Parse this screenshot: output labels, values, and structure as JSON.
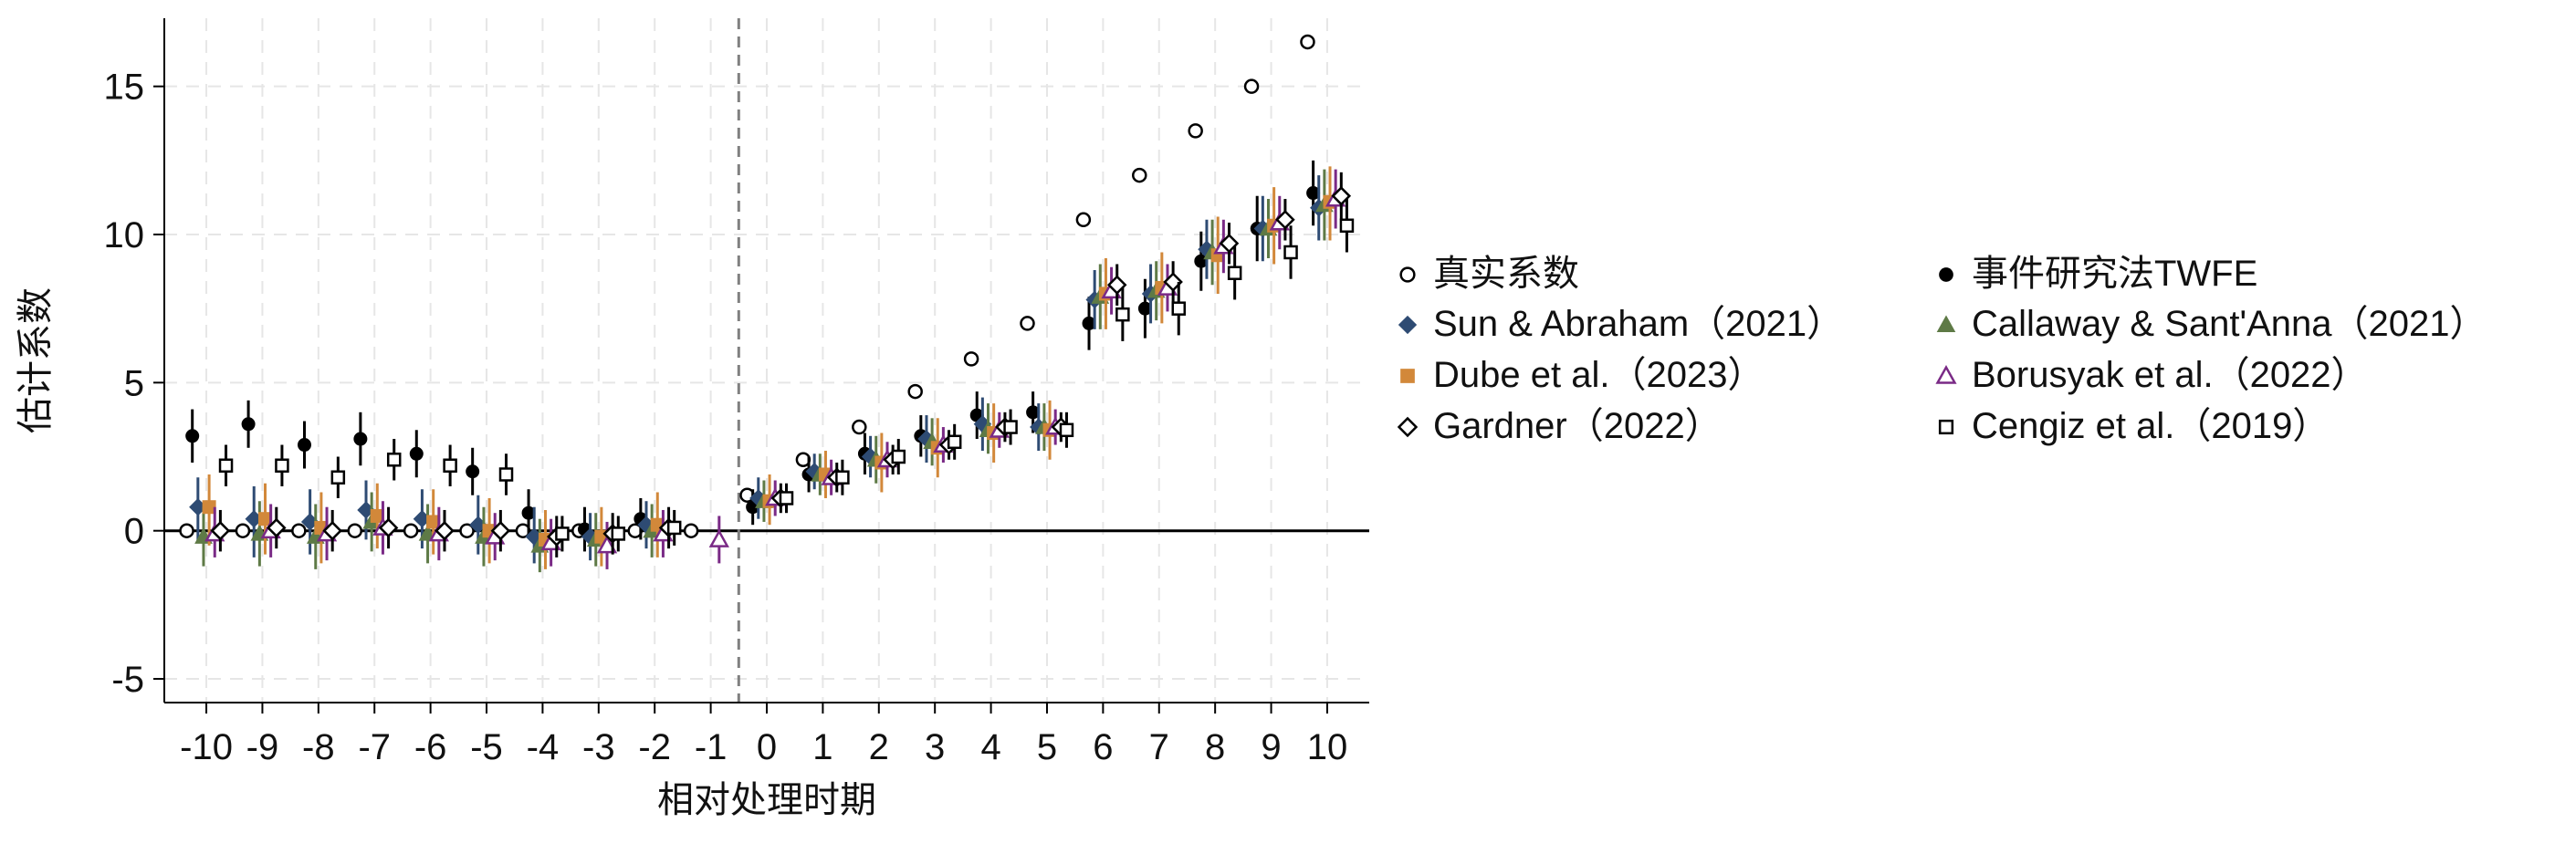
{
  "chart_data": {
    "type": "scatter",
    "title": "",
    "xlabel": "相对处理时期",
    "ylabel": "估计系数",
    "x": [
      -10,
      -9,
      -8,
      -7,
      -6,
      -5,
      -4,
      -3,
      -2,
      -1,
      0,
      1,
      2,
      3,
      4,
      5,
      6,
      7,
      8,
      9,
      10
    ],
    "xlim": [
      -10.75,
      10.75
    ],
    "ylim": [
      -5.8,
      17.3
    ],
    "yticks": [
      -5,
      0,
      5,
      10,
      15
    ],
    "ytick_labels": [
      "-5",
      "0",
      "5",
      "10",
      "15"
    ],
    "xtick_labels": [
      "-10",
      "-9",
      "-8",
      "-7",
      "-6",
      "-5",
      "-4",
      "-3",
      "-2",
      "-1",
      "0",
      "1",
      "2",
      "3",
      "4",
      "5",
      "6",
      "7",
      "8",
      "9",
      "10"
    ],
    "grid": true,
    "reference_lines": {
      "horizontal_y": 0,
      "vertical_x": -0.5
    },
    "legend": {
      "placement": "right",
      "columns": 2
    },
    "series": [
      {
        "name": "真实系数",
        "marker": "circle-open",
        "color": "#000000",
        "offset": -0.35,
        "values": [
          0,
          0,
          0,
          0,
          0,
          0,
          0,
          0,
          0,
          0,
          1.2,
          2.4,
          3.5,
          4.7,
          5.8,
          7.0,
          10.5,
          12.0,
          13.5,
          15.0,
          16.5
        ],
        "ci": null
      },
      {
        "name": "事件研究法TWFE",
        "marker": "circle",
        "color": "#000000",
        "offset": -0.25,
        "values": [
          3.2,
          3.6,
          2.9,
          3.1,
          2.6,
          2.0,
          0.6,
          0.05,
          0.4,
          null,
          0.8,
          1.9,
          2.6,
          3.2,
          3.9,
          4.0,
          7.0,
          7.5,
          9.1,
          10.2,
          11.4
        ],
        "ci": [
          [
            2.3,
            4.1
          ],
          [
            2.8,
            4.4
          ],
          [
            2.1,
            3.7
          ],
          [
            2.2,
            4.0
          ],
          [
            1.8,
            3.4
          ],
          [
            1.2,
            2.8
          ],
          [
            -0.2,
            1.4
          ],
          [
            -0.7,
            0.8
          ],
          [
            -0.3,
            1.1
          ],
          null,
          [
            0.2,
            1.4
          ],
          [
            1.3,
            2.5
          ],
          [
            1.9,
            3.3
          ],
          [
            2.5,
            3.9
          ],
          [
            3.1,
            4.7
          ],
          [
            3.3,
            4.7
          ],
          [
            6.1,
            7.9
          ],
          [
            6.5,
            8.5
          ],
          [
            8.1,
            10.1
          ],
          [
            9.1,
            11.3
          ],
          [
            10.3,
            12.5
          ]
        ]
      },
      {
        "name": "Sun & Abraham（2021）",
        "marker": "diamond",
        "color": "#2e4b73",
        "offset": -0.15,
        "values": [
          0.8,
          0.4,
          0.3,
          0.7,
          0.4,
          0.2,
          -0.2,
          -0.2,
          0.2,
          null,
          1.1,
          2.0,
          2.5,
          3.1,
          3.6,
          3.5,
          7.8,
          8.0,
          9.5,
          10.2,
          10.9
        ],
        "ci": [
          [
            -0.4,
            1.8
          ],
          [
            -0.9,
            1.5
          ],
          [
            -0.8,
            1.4
          ],
          [
            -0.3,
            1.7
          ],
          [
            -0.6,
            1.4
          ],
          [
            -0.8,
            1.2
          ],
          [
            -1.1,
            0.8
          ],
          [
            -1.0,
            0.6
          ],
          [
            -0.6,
            1.0
          ],
          null,
          [
            0.4,
            1.8
          ],
          [
            1.4,
            2.6
          ],
          [
            1.8,
            3.2
          ],
          [
            2.3,
            3.9
          ],
          [
            2.7,
            4.5
          ],
          [
            2.7,
            4.3
          ],
          [
            6.8,
            8.8
          ],
          [
            7.0,
            9.0
          ],
          [
            8.5,
            10.5
          ],
          [
            9.1,
            11.3
          ],
          [
            9.8,
            12.0
          ]
        ]
      },
      {
        "name": "Callaway & Sant'Anna（2021）",
        "marker": "triangle",
        "color": "#5e7a46",
        "offset": -0.05,
        "values": [
          -0.2,
          -0.1,
          -0.2,
          0.3,
          -0.1,
          -0.2,
          -0.5,
          -0.3,
          0.0,
          null,
          1.0,
          1.9,
          2.4,
          3.0,
          3.4,
          3.5,
          7.9,
          8.1,
          9.4,
          10.2,
          11.0
        ],
        "ci": [
          [
            -1.2,
            0.8
          ],
          [
            -1.2,
            1.0
          ],
          [
            -1.3,
            0.9
          ],
          [
            -0.7,
            1.3
          ],
          [
            -1.1,
            0.9
          ],
          [
            -1.2,
            0.8
          ],
          [
            -1.4,
            0.4
          ],
          [
            -1.2,
            0.6
          ],
          [
            -0.9,
            0.9
          ],
          null,
          [
            0.3,
            1.7
          ],
          [
            1.2,
            2.6
          ],
          [
            1.6,
            3.2
          ],
          [
            2.2,
            3.8
          ],
          [
            2.6,
            4.3
          ],
          [
            2.7,
            4.3
          ],
          [
            6.8,
            9.0
          ],
          [
            7.1,
            9.1
          ],
          [
            8.3,
            10.5
          ],
          [
            9.2,
            11.2
          ],
          [
            9.8,
            12.2
          ]
        ]
      },
      {
        "name": "Dube et al.（2023）",
        "marker": "square",
        "color": "#d2883a",
        "offset": 0.05,
        "values": [
          0.8,
          0.4,
          0.1,
          0.5,
          0.3,
          0.0,
          -0.3,
          -0.2,
          0.2,
          null,
          1.0,
          1.9,
          2.3,
          2.8,
          3.3,
          3.4,
          8.0,
          8.2,
          9.3,
          10.3,
          11.1
        ],
        "ci": [
          [
            -0.5,
            1.9
          ],
          [
            -0.8,
            1.6
          ],
          [
            -1.1,
            1.3
          ],
          [
            -0.6,
            1.6
          ],
          [
            -0.8,
            1.4
          ],
          [
            -1.1,
            1.1
          ],
          [
            -1.3,
            0.7
          ],
          [
            -1.2,
            0.8
          ],
          [
            -0.9,
            1.3
          ],
          null,
          [
            0.2,
            1.9
          ],
          [
            1.1,
            2.7
          ],
          [
            1.3,
            3.3
          ],
          [
            1.8,
            3.8
          ],
          [
            2.3,
            4.3
          ],
          [
            2.4,
            4.4
          ],
          [
            6.8,
            9.2
          ],
          [
            7.0,
            9.4
          ],
          [
            8.0,
            10.6
          ],
          [
            9.0,
            11.6
          ],
          [
            9.8,
            12.3
          ]
        ]
      },
      {
        "name": "Borusyak et al.（2022）",
        "marker": "triangle-open",
        "color": "#7a2a86",
        "offset": 0.15,
        "values": [
          -0.1,
          0.0,
          -0.1,
          0.1,
          -0.1,
          -0.2,
          -0.4,
          -0.5,
          -0.1,
          -0.3,
          1.1,
          1.8,
          2.4,
          2.9,
          3.4,
          3.5,
          8.1,
          8.2,
          9.6,
          10.4,
          11.2
        ],
        "ci": [
          [
            -0.9,
            0.8
          ],
          [
            -0.9,
            0.9
          ],
          [
            -1.0,
            0.8
          ],
          [
            -0.8,
            1.0
          ],
          [
            -1.0,
            0.8
          ],
          [
            -1.0,
            0.6
          ],
          [
            -1.2,
            0.4
          ],
          [
            -1.3,
            0.3
          ],
          [
            -0.9,
            0.7
          ],
          [
            -1.1,
            0.5
          ],
          [
            0.5,
            1.7
          ],
          [
            1.2,
            2.4
          ],
          [
            1.8,
            3.0
          ],
          [
            2.3,
            3.5
          ],
          [
            2.8,
            4.0
          ],
          [
            2.9,
            4.1
          ],
          [
            7.3,
            8.9
          ],
          [
            7.4,
            9.0
          ],
          [
            8.7,
            10.5
          ],
          [
            9.5,
            11.3
          ],
          [
            10.2,
            12.2
          ]
        ]
      },
      {
        "name": "Gardner（2022）",
        "marker": "diamond-open",
        "color": "#000000",
        "offset": 0.25,
        "values": [
          0.0,
          0.1,
          0.0,
          0.1,
          0.0,
          0.0,
          -0.2,
          -0.1,
          0.1,
          null,
          1.1,
          1.8,
          2.4,
          2.9,
          3.5,
          3.5,
          8.3,
          8.4,
          9.7,
          10.5,
          11.3
        ],
        "ci": [
          [
            -0.7,
            0.7
          ],
          [
            -0.6,
            0.8
          ],
          [
            -0.7,
            0.7
          ],
          [
            -0.6,
            0.8
          ],
          [
            -0.7,
            0.7
          ],
          [
            -0.7,
            0.7
          ],
          [
            -0.9,
            0.5
          ],
          [
            -0.8,
            0.6
          ],
          [
            -0.6,
            0.8
          ],
          null,
          [
            0.6,
            1.6
          ],
          [
            1.3,
            2.3
          ],
          [
            1.9,
            2.9
          ],
          [
            2.4,
            3.4
          ],
          [
            3.0,
            4.0
          ],
          [
            3.0,
            4.0
          ],
          [
            7.6,
            9.0
          ],
          [
            7.7,
            9.1
          ],
          [
            9.0,
            10.4
          ],
          [
            9.8,
            11.2
          ],
          [
            10.5,
            12.1
          ]
        ]
      },
      {
        "name": "Cengiz et al.（2019）",
        "marker": "square-open",
        "color": "#000000",
        "offset": 0.35,
        "values": [
          2.2,
          2.2,
          1.8,
          2.4,
          2.2,
          1.9,
          -0.1,
          -0.1,
          0.1,
          null,
          1.1,
          1.8,
          2.5,
          3.0,
          3.5,
          3.4,
          7.3,
          7.5,
          8.7,
          9.4,
          10.3
        ],
        "ci": [
          [
            1.5,
            2.9
          ],
          [
            1.5,
            2.9
          ],
          [
            1.1,
            2.5
          ],
          [
            1.7,
            3.1
          ],
          [
            1.5,
            2.9
          ],
          [
            1.2,
            2.6
          ],
          [
            -0.7,
            0.5
          ],
          [
            -0.7,
            0.5
          ],
          [
            -0.5,
            0.7
          ],
          null,
          [
            0.6,
            1.6
          ],
          [
            1.2,
            2.4
          ],
          [
            1.9,
            3.1
          ],
          [
            2.4,
            3.6
          ],
          [
            2.9,
            4.1
          ],
          [
            2.8,
            4.0
          ],
          [
            6.4,
            8.2
          ],
          [
            6.6,
            8.4
          ],
          [
            7.8,
            9.6
          ],
          [
            8.5,
            10.3
          ],
          [
            9.4,
            11.2
          ]
        ]
      }
    ],
    "legend_order": [
      [
        "真实系数",
        "事件研究法TWFE"
      ],
      [
        "Sun & Abraham（2021）",
        "Callaway & Sant'Anna（2021）"
      ],
      [
        "Dube et al.（2023）",
        "Borusyak et al.（2022）"
      ],
      [
        "Gardner（2022）",
        "Cengiz et al.（2019）"
      ]
    ]
  }
}
